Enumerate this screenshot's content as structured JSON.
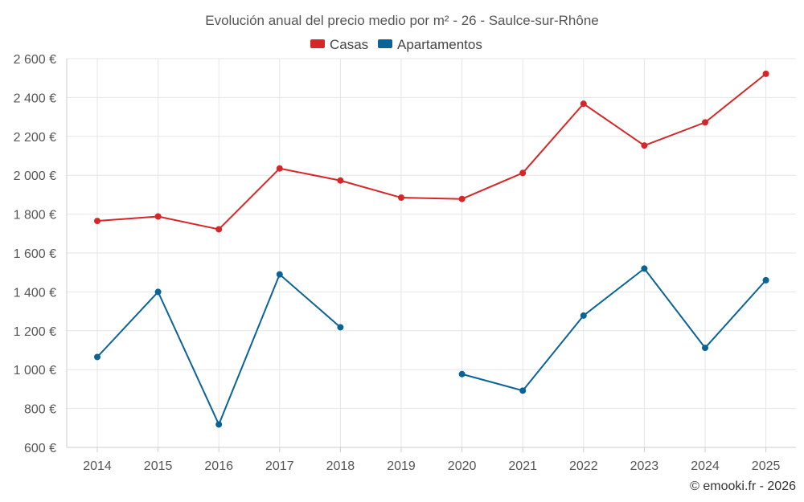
{
  "chart_data": {
    "type": "line",
    "title": "Evolución anual del precio medio por m² - 26 - Saulce-sur-Rhône",
    "categories": [
      "2014",
      "2015",
      "2016",
      "2017",
      "2018",
      "2019",
      "2020",
      "2021",
      "2022",
      "2023",
      "2024",
      "2025"
    ],
    "y_ticks": [
      "600 €",
      "800 €",
      "1 000 €",
      "1 200 €",
      "1 400 €",
      "1 600 €",
      "1 800 €",
      "2 000 €",
      "2 200 €",
      "2 400 €",
      "2 600 €"
    ],
    "y_tick_values": [
      600,
      800,
      1000,
      1200,
      1400,
      1600,
      1800,
      2000,
      2200,
      2400,
      2600
    ],
    "ylim": [
      600,
      2600
    ],
    "xlabel": "",
    "ylabel": "",
    "grid": true,
    "legend_position": "top-center",
    "series": [
      {
        "name": "Casas",
        "color": "#d62728",
        "values": [
          1765,
          1788,
          1722,
          2035,
          1973,
          1885,
          1878,
          2012,
          2368,
          2153,
          2272,
          2522
        ]
      },
      {
        "name": "Apartamentos",
        "color": "#0a6396",
        "values": [
          1065,
          1400,
          718,
          1490,
          1218,
          null,
          977,
          892,
          1278,
          1520,
          1112,
          1460
        ]
      }
    ]
  },
  "credit": "© emooki.fr - 2026"
}
